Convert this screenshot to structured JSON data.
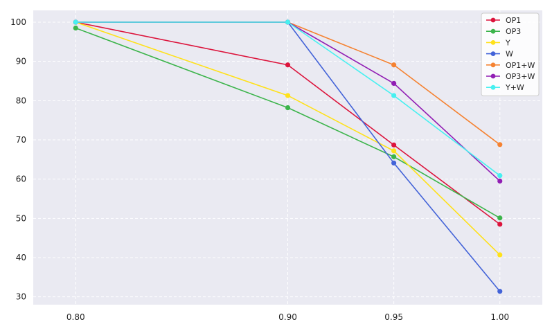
{
  "chart_data": {
    "type": "line",
    "title": "",
    "xlabel": "",
    "ylabel": "",
    "x": [
      0.8,
      0.9,
      0.95,
      1.0
    ],
    "x_tick_labels": [
      "0.80",
      "0.90",
      "0.95",
      "1.00"
    ],
    "y_ticks": [
      30,
      40,
      50,
      60,
      70,
      80,
      90,
      100
    ],
    "ylim": [
      28,
      103
    ],
    "grid": true,
    "legend_position": "top-right",
    "background_color": "#eaeaf2",
    "grid_color": "#ffffff",
    "series": [
      {
        "name": "OP1",
        "color": "#dc143c",
        "values": [
          100,
          89.1,
          68.7,
          48.5
        ]
      },
      {
        "name": "OP3",
        "color": "#3cb44b",
        "values": [
          98.5,
          78.2,
          65.7,
          50.1
        ]
      },
      {
        "name": "Y",
        "color": "#ffe119",
        "values": [
          100,
          81.3,
          67.2,
          40.7
        ]
      },
      {
        "name": "W",
        "color": "#4363d8",
        "values": [
          100,
          100,
          64.1,
          31.4
        ]
      },
      {
        "name": "OP1+W",
        "color": "#f58231",
        "values": [
          100,
          100,
          89.1,
          68.8
        ]
      },
      {
        "name": "OP3+W",
        "color": "#911eb4",
        "values": [
          100,
          100,
          84.4,
          59.5
        ]
      },
      {
        "name": "Y+W",
        "color": "#46f0f0",
        "values": [
          100,
          100,
          81.3,
          60.9
        ]
      }
    ]
  }
}
